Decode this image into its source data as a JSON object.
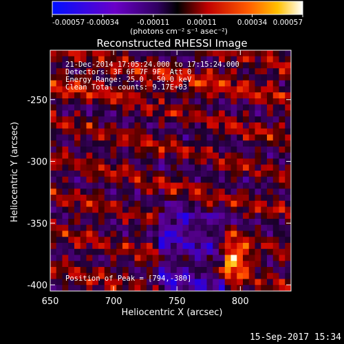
{
  "chart_data": {
    "type": "heatmap",
    "title": "Reconstructed RHESSI Image",
    "xlabel": "Heliocentric X (arcsec)",
    "ylabel": "Heliocentric Y (arcsec)",
    "xlim": [
      650,
      840
    ],
    "ylim": [
      -405,
      -210
    ],
    "x_ticks": [
      "650",
      "700",
      "750",
      "800"
    ],
    "x_tick_values": [
      650,
      700,
      750,
      800
    ],
    "y_ticks": [
      "-250",
      "-300",
      "-350",
      "-400"
    ],
    "y_tick_values": [
      -250,
      -300,
      -350,
      -400
    ],
    "colorbar": {
      "min": -0.00057,
      "max": 0.00057,
      "ticks": [
        "-0.00057",
        "-0.00034",
        "-0.00011",
        "0.00011",
        "0.00034",
        "0.00057"
      ],
      "units": "(photons cm⁻² s⁻¹ asec⁻²)"
    },
    "annotations": {
      "time_range": "21-Dec-2014 17:05:24.000 to 17:15:24.000",
      "detectors": "Detectors: 3F 6F 7F 9F, Att 0",
      "energy": "Energy Range: 25.0 - 50.0 keV",
      "method": "Clean     Total counts: 9.17E+03",
      "peak": "Position of Peak = [794,-380]"
    },
    "peak": [
      794,
      -380
    ],
    "colors": {
      "neg_max": "#0000ff",
      "zero": "#000000",
      "pos_mid": "#ff4400",
      "pos_max": "#ffffff",
      "background": "#000000"
    }
  },
  "footer": {
    "timestamp": "15-Sep-2017 15:34"
  }
}
